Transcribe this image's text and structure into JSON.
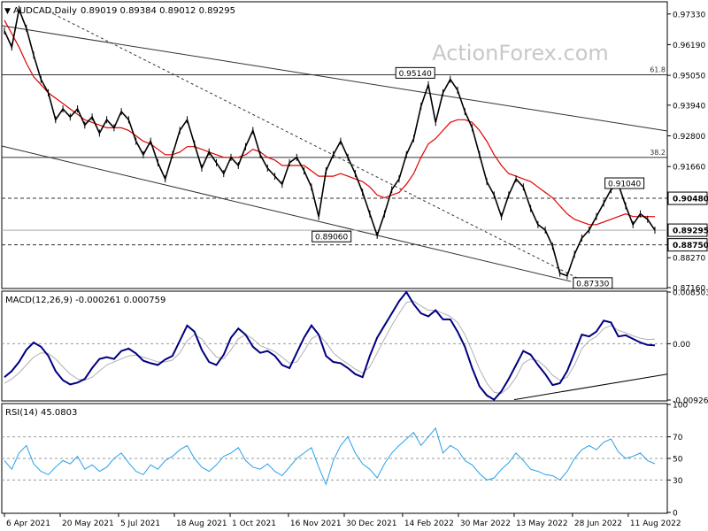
{
  "header": {
    "symbol_label": "AUDCAD,Daily",
    "ohlc_label": "0.89019 0.89384 0.89012 0.89295"
  },
  "watermark": "ActionForex.com",
  "colors": {
    "price": "#000000",
    "ma": "#e00000",
    "macd": "#000080",
    "signal": "#b0b0b0",
    "rsi": "#2aa0e8",
    "grid_dash": "#999999"
  },
  "chart_data": [
    {
      "type": "line",
      "panel": "price",
      "ylim": [
        0.8716,
        0.9775
      ],
      "y_ticks": [
        "0.97330",
        "0.96190",
        "0.95050",
        "0.93940",
        "0.92800",
        "0.91660",
        "0.90480",
        "0.89295",
        "0.88750",
        "0.88270",
        "0.87160"
      ],
      "highlighted_ticks": [
        "0.90480",
        "0.89295",
        "0.88750"
      ],
      "fib_levels": [
        {
          "label": "61.8",
          "value": 0.9507
        },
        {
          "label": "38.2",
          "value": 0.92
        }
      ],
      "horizontal_levels": [
        {
          "value": 0.9048,
          "style": "dashed"
        },
        {
          "value": 0.8875,
          "style": "dashed"
        },
        {
          "value": 0.89295,
          "style": "solid-gray"
        }
      ],
      "annotations": [
        {
          "text": "0.95140",
          "date": "2022-02-24",
          "value": 0.9514
        },
        {
          "text": "0.91040",
          "date": "2022-08-08",
          "value": 0.9104
        },
        {
          "text": "0.89060",
          "date": "2021-12-20",
          "value": 0.8906
        },
        {
          "text": "0.87330",
          "date": "2022-07-14",
          "value": 0.8733
        }
      ],
      "x_labels": [
        "6 Apr 2021",
        "20 May 2021",
        "5 Jul 2021",
        "18 Aug 2021",
        "1 Oct 2021",
        "16 Nov 2021",
        "30 Dec 2021",
        "14 Feb 2022",
        "30 Mar 2022",
        "13 May 2022",
        "28 Jun 2022",
        "11 Aug 2022"
      ],
      "series": [
        {
          "role": "price",
          "values": [
            0.967,
            0.961,
            0.975,
            0.968,
            0.958,
            0.949,
            0.944,
            0.934,
            0.938,
            0.935,
            0.938,
            0.932,
            0.935,
            0.929,
            0.934,
            0.931,
            0.937,
            0.934,
            0.926,
            0.921,
            0.926,
            0.918,
            0.912,
            0.921,
            0.93,
            0.934,
            0.925,
            0.916,
            0.922,
            0.918,
            0.914,
            0.92,
            0.917,
            0.924,
            0.93,
            0.921,
            0.916,
            0.913,
            0.91,
            0.918,
            0.92,
            0.915,
            0.909,
            0.898,
            0.915,
            0.921,
            0.926,
            0.92,
            0.914,
            0.907,
            0.899,
            0.891,
            0.899,
            0.908,
            0.912,
            0.921,
            0.927,
            0.939,
            0.947,
            0.933,
            0.944,
            0.949,
            0.945,
            0.937,
            0.931,
            0.921,
            0.911,
            0.906,
            0.898,
            0.906,
            0.912,
            0.909,
            0.901,
            0.895,
            0.893,
            0.887,
            0.877,
            0.876,
            0.884,
            0.89,
            0.893,
            0.898,
            0.903,
            0.908,
            0.91,
            0.902,
            0.895,
            0.899,
            0.897,
            0.89295
          ]
        },
        {
          "role": "moving_average",
          "values": [
            0.971,
            0.966,
            0.961,
            0.955,
            0.95,
            0.947,
            0.944,
            0.942,
            0.94,
            0.938,
            0.936,
            0.934,
            0.933,
            0.932,
            0.931,
            0.931,
            0.931,
            0.93,
            0.928,
            0.926,
            0.925,
            0.923,
            0.921,
            0.921,
            0.922,
            0.924,
            0.924,
            0.923,
            0.922,
            0.921,
            0.92,
            0.92,
            0.92,
            0.921,
            0.923,
            0.922,
            0.92,
            0.919,
            0.917,
            0.917,
            0.917,
            0.917,
            0.915,
            0.913,
            0.913,
            0.913,
            0.914,
            0.913,
            0.912,
            0.911,
            0.909,
            0.906,
            0.905,
            0.906,
            0.907,
            0.91,
            0.914,
            0.92,
            0.925,
            0.927,
            0.93,
            0.933,
            0.934,
            0.934,
            0.933,
            0.93,
            0.926,
            0.921,
            0.917,
            0.914,
            0.913,
            0.912,
            0.911,
            0.909,
            0.907,
            0.905,
            0.902,
            0.899,
            0.897,
            0.896,
            0.895,
            0.895,
            0.896,
            0.897,
            0.898,
            0.899,
            0.898,
            0.898,
            0.898,
            0.898
          ]
        }
      ]
    },
    {
      "type": "line",
      "panel": "macd",
      "label": "MACD(12,26,9) -0.000261 0.000759",
      "ylim": [
        -0.009262,
        0.008503
      ],
      "y_ticks": [
        "0.008503",
        "0.00",
        "-0.009262"
      ],
      "series": [
        {
          "role": "macd",
          "values": [
            -0.0055,
            -0.0045,
            -0.003,
            -0.001,
            0.0002,
            -0.0005,
            -0.002,
            -0.0045,
            -0.006,
            -0.0067,
            -0.0064,
            -0.0058,
            -0.004,
            -0.0025,
            -0.0022,
            -0.0025,
            -0.0012,
            -0.0008,
            -0.0016,
            -0.0028,
            -0.0032,
            -0.0035,
            -0.0026,
            -0.002,
            0.0005,
            0.003,
            0.002,
            -0.001,
            -0.003,
            -0.0035,
            -0.0018,
            0.001,
            0.0025,
            0.0015,
            -0.0005,
            -0.0015,
            -0.0012,
            -0.002,
            -0.0035,
            -0.004,
            -0.0015,
            0.001,
            0.003,
            0.0015,
            -0.002,
            -0.003,
            -0.0032,
            -0.004,
            -0.005,
            -0.0055,
            -0.002,
            0.001,
            0.003,
            0.005,
            0.007,
            0.0085,
            0.0065,
            0.005,
            0.0045,
            0.0055,
            0.004,
            0.004,
            0.002,
            -0.0005,
            -0.004,
            -0.007,
            -0.0085,
            -0.0092,
            -0.0078,
            -0.0058,
            -0.0035,
            -0.0012,
            -0.0018,
            -0.0035,
            -0.005,
            -0.0068,
            -0.0065,
            -0.0045,
            -0.0015,
            0.0015,
            0.0012,
            0.002,
            0.0038,
            0.0035,
            0.0012,
            0.0014,
            0.0008,
            0.0002,
            -0.0002,
            -0.000261
          ]
        },
        {
          "role": "signal",
          "values": [
            -0.0065,
            -0.0058,
            -0.0048,
            -0.0035,
            -0.0022,
            -0.0015,
            -0.0016,
            -0.0025,
            -0.0038,
            -0.005,
            -0.0058,
            -0.006,
            -0.0055,
            -0.0045,
            -0.0035,
            -0.003,
            -0.0025,
            -0.002,
            -0.0019,
            -0.0022,
            -0.0026,
            -0.003,
            -0.003,
            -0.0027,
            -0.0015,
            0.0005,
            0.0015,
            0.0008,
            -0.0008,
            -0.0022,
            -0.0025,
            -0.001,
            0.0008,
            0.0015,
            0.0008,
            -0.0003,
            -0.0008,
            -0.0013,
            -0.0022,
            -0.0032,
            -0.003,
            -0.0012,
            0.0008,
            0.0015,
            0.0002,
            -0.0015,
            -0.0025,
            -0.0033,
            -0.0042,
            -0.0048,
            -0.0038,
            -0.0015,
            0.0008,
            0.003,
            0.005,
            0.0068,
            0.007,
            0.0062,
            0.0055,
            0.0055,
            0.005,
            0.0045,
            0.0035,
            0.0015,
            -0.0012,
            -0.0042,
            -0.0065,
            -0.008,
            -0.0082,
            -0.0072,
            -0.0055,
            -0.0032,
            -0.0025,
            -0.0028,
            -0.0038,
            -0.0052,
            -0.006,
            -0.0055,
            -0.0035,
            -0.0008,
            0.0005,
            0.0012,
            0.0025,
            0.003,
            0.0022,
            0.0018,
            0.0013,
            0.0009,
            0.0007,
            0.000759
          ]
        }
      ],
      "trendline": {
        "from": {
          "date": "2022-05-13",
          "value": -0.0092
        },
        "to": {
          "date": "2022-09-01",
          "value": -0.005
        }
      }
    },
    {
      "type": "line",
      "panel": "rsi",
      "label": "RSI(14) 45.0803",
      "ylim": [
        0,
        100
      ],
      "y_ticks": [
        "100",
        "70",
        "50",
        "30",
        "0"
      ],
      "levels": [
        70,
        50,
        30
      ],
      "series": [
        {
          "role": "rsi",
          "values": [
            48,
            40,
            55,
            62,
            45,
            38,
            35,
            42,
            48,
            45,
            52,
            40,
            44,
            38,
            42,
            50,
            55,
            46,
            38,
            35,
            44,
            40,
            48,
            52,
            58,
            62,
            50,
            42,
            38,
            44,
            52,
            55,
            60,
            48,
            42,
            40,
            45,
            38,
            34,
            42,
            50,
            55,
            60,
            42,
            26,
            48,
            62,
            70,
            55,
            45,
            40,
            32,
            45,
            55,
            62,
            68,
            74,
            62,
            70,
            78,
            55,
            62,
            58,
            48,
            44,
            36,
            30,
            32,
            40,
            46,
            55,
            48,
            40,
            38,
            35,
            34,
            30,
            38,
            50,
            58,
            62,
            58,
            65,
            68,
            56,
            50,
            52,
            55,
            48,
            45.08
          ]
        }
      ]
    }
  ]
}
